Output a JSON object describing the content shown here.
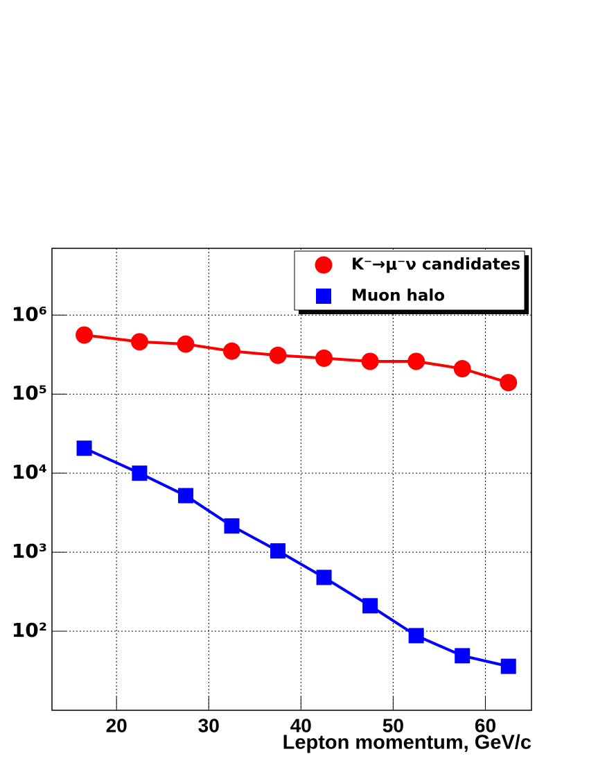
{
  "chart_data": {
    "type": "line",
    "x_label": "Lepton momentum, GeV/c",
    "x": [
      16.5,
      22.5,
      27.5,
      32.5,
      37.5,
      42.5,
      47.5,
      52.5,
      57.5,
      62.5
    ],
    "series": [
      {
        "name": "K⁻→μ⁻ν candidates",
        "color": "#ff0000",
        "marker": "circle",
        "values": [
          560000,
          460000,
          430000,
          350000,
          310000,
          285000,
          260000,
          260000,
          210000,
          140000
        ]
      },
      {
        "name": "Muon halo",
        "color": "#0000ff",
        "marker": "square",
        "values": [
          20700,
          10000,
          5200,
          2150,
          1040,
          480,
          210,
          88,
          49,
          36
        ]
      }
    ],
    "xlim": [
      13,
      65
    ],
    "xticks": [
      20,
      30,
      40,
      50,
      60
    ],
    "ylim": [
      10,
      7000000
    ],
    "yticks": [
      {
        "value": 100,
        "label": "10²"
      },
      {
        "value": 1000,
        "label": "10³"
      },
      {
        "value": 10000,
        "label": "10⁴"
      },
      {
        "value": 100000,
        "label": "10⁵"
      },
      {
        "value": 1000000,
        "label": "10⁶"
      }
    ],
    "log_y": true,
    "grid": true,
    "legend": "upper right"
  }
}
